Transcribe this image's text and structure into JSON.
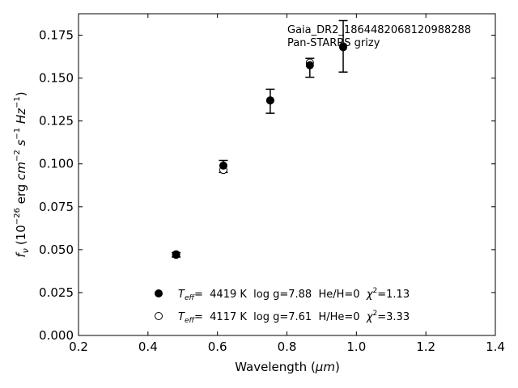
{
  "chart_data": {
    "type": "scatter",
    "xlabel": "Wavelength (",
    "xlabel_unit": "μm",
    "xlabel_close": ")",
    "ylabel": "f",
    "ylabel_sub": "ν",
    "ylabel_units": [
      "(10",
      "−26",
      " erg ",
      "cm",
      "−2",
      " ",
      "s",
      "−1",
      " ",
      "Hz",
      "−1",
      ")"
    ],
    "xlim": [
      0.2,
      1.4
    ],
    "ylim": [
      0.0,
      0.1875
    ],
    "xticks": [
      "0.2",
      "0.4",
      "0.6",
      "0.8",
      "1.0",
      "1.2",
      "1.4"
    ],
    "yticks": [
      "0.000",
      "0.025",
      "0.050",
      "0.075",
      "0.100",
      "0.125",
      "0.150",
      "0.175"
    ],
    "annotation": [
      "Gaia_DR2_1864482068120988288",
      "Pan-STARRS grizy"
    ],
    "observed": [
      {
        "x": 0.481,
        "y": 0.047,
        "err": 0.0013
      },
      {
        "x": 0.617,
        "y": 0.0985,
        "err": 0.0035
      },
      {
        "x": 0.752,
        "y": 0.1365,
        "err": 0.007
      },
      {
        "x": 0.866,
        "y": 0.156,
        "err": 0.0055
      },
      {
        "x": 0.962,
        "y": 0.1685,
        "err": 0.015
      }
    ],
    "series": [
      {
        "marker": "filled",
        "values": [
          0.0473,
          0.099,
          0.137,
          0.1575,
          0.168
        ]
      },
      {
        "marker": "open",
        "values": [
          0.047,
          0.0965,
          0.137,
          0.159,
          0.1685
        ]
      }
    ],
    "legend": [
      {
        "marker": "filled",
        "teff_label": "T",
        "teff_sub": "eff",
        "text": "=  4419 K  log g=7.88  He/H=0  ",
        "chi_label": "χ",
        "chi_sup": "2",
        "chi_value": "=1.13"
      },
      {
        "marker": "open",
        "teff_label": "T",
        "teff_sub": "eff",
        "text": "=  4117 K  log g=7.61  H/He=0  ",
        "chi_label": "χ",
        "chi_sup": "2",
        "chi_value": "=3.33"
      }
    ],
    "legend_position": "lower-center"
  }
}
